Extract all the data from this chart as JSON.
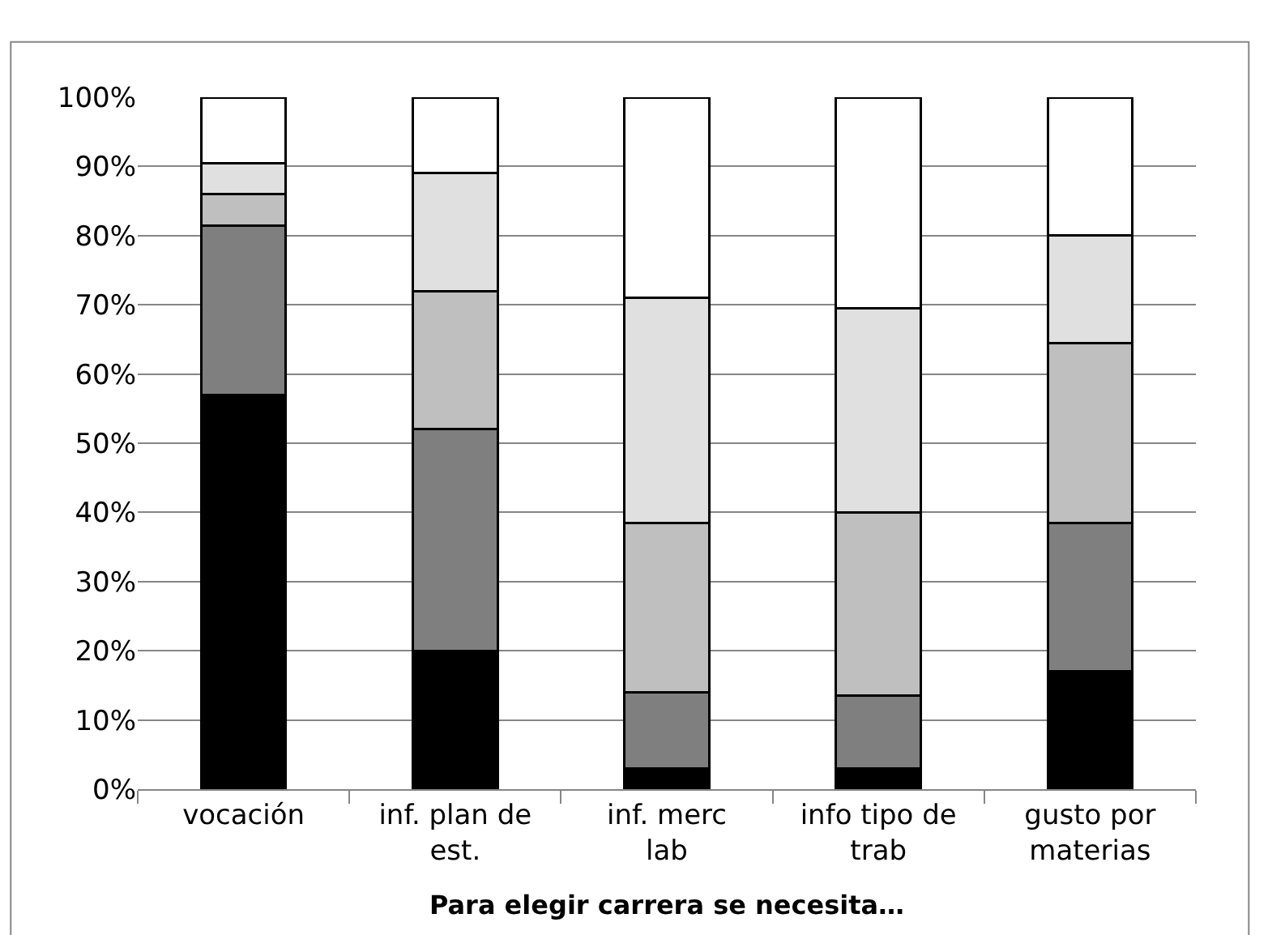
{
  "chart_data": {
    "type": "bar",
    "stacked": true,
    "xlabel": "Para elegir carrera se necesita…",
    "categories": [
      "vocación",
      "inf. plan de est.",
      "inf. merc lab",
      "info tipo de trab",
      "gusto por materias"
    ],
    "series": [
      {
        "color": "#000000",
        "values": [
          57,
          20,
          3,
          3,
          17
        ]
      },
      {
        "color": "#7f7f7f",
        "values": [
          24.5,
          32,
          11,
          10.5,
          21.5
        ]
      },
      {
        "color": "#bfbfbf",
        "values": [
          4.5,
          20,
          24.5,
          26.5,
          26
        ]
      },
      {
        "color": "#e0e0e0",
        "values": [
          4.5,
          17,
          32.5,
          29.5,
          15.5
        ]
      },
      {
        "color": "#ffffff",
        "values": [
          9.5,
          11,
          29,
          30.5,
          20
        ]
      }
    ],
    "ylim": [
      0,
      100
    ],
    "yticks": [
      {
        "value": 0,
        "label": "0%"
      },
      {
        "value": 10,
        "label": "10%"
      },
      {
        "value": 20,
        "label": "20%"
      },
      {
        "value": 30,
        "label": "30%"
      },
      {
        "value": 40,
        "label": "40%"
      },
      {
        "value": 50,
        "label": "50%"
      },
      {
        "value": 60,
        "label": "60%"
      },
      {
        "value": 70,
        "label": "70%"
      },
      {
        "value": 80,
        "label": "80%"
      },
      {
        "value": 90,
        "label": "90%"
      },
      {
        "value": 100,
        "label": "100%"
      }
    ],
    "grid": "y"
  }
}
